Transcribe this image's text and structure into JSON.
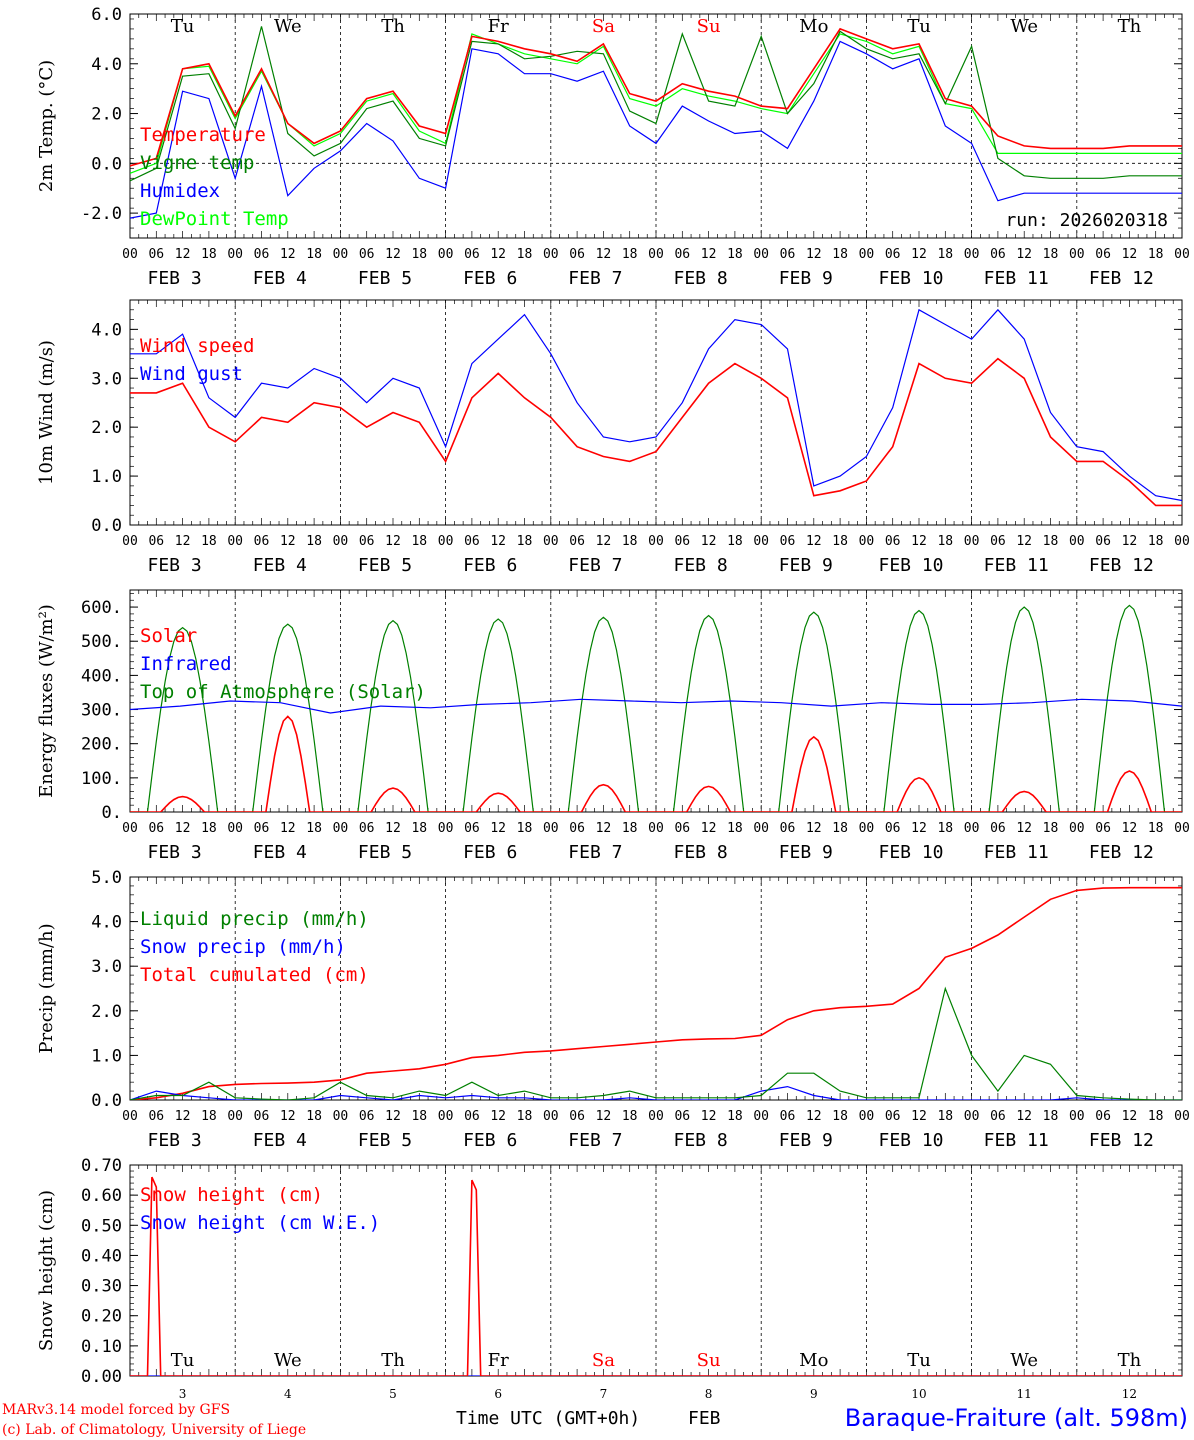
{
  "chart_data": [
    {
      "type": "line",
      "ylabel": "2m Temp. (°C)",
      "ylim": [
        -3,
        6
      ],
      "yticks": [
        "-2.0",
        "0.0",
        "2.0",
        "4.0",
        "6.0"
      ],
      "run_label": "run: 2026020318",
      "x_hours": [
        0,
        6,
        12,
        18,
        24,
        30,
        36,
        42,
        48,
        54,
        60,
        66,
        72,
        78,
        84,
        90,
        96,
        102,
        108,
        114,
        120,
        126,
        132,
        138,
        144,
        150,
        156,
        162,
        168,
        174,
        180,
        186,
        192,
        198,
        204,
        210,
        216,
        222,
        228,
        234,
        240
      ],
      "series": [
        {
          "name": "Temperature",
          "color": "#ff0000",
          "values": [
            -0.1,
            0.2,
            3.8,
            4.0,
            1.9,
            3.8,
            1.6,
            0.8,
            1.3,
            2.6,
            2.9,
            1.5,
            1.2,
            5.1,
            4.9,
            4.6,
            4.4,
            4.1,
            4.8,
            2.8,
            2.5,
            3.2,
            2.9,
            2.7,
            2.3,
            2.2,
            3.8,
            5.4,
            5.0,
            4.6,
            4.8,
            2.6,
            2.3,
            1.1,
            0.7,
            0.6,
            0.6,
            0.6,
            0.7,
            0.7,
            0.7
          ]
        },
        {
          "name": "Vigne temp",
          "color": "#008000",
          "values": [
            -0.7,
            -0.2,
            3.5,
            3.6,
            1.4,
            5.5,
            1.2,
            0.3,
            0.8,
            2.2,
            2.5,
            1.0,
            0.7,
            4.9,
            4.8,
            4.2,
            4.3,
            4.5,
            4.4,
            2.1,
            1.6,
            5.2,
            2.5,
            2.3,
            5.1,
            2.0,
            3.2,
            5.3,
            4.6,
            4.2,
            4.4,
            2.4,
            4.7,
            0.2,
            -0.5,
            -0.6,
            -0.6,
            -0.6,
            -0.5,
            -0.5,
            -0.5
          ]
        },
        {
          "name": "Humidex",
          "color": "#0000ff",
          "values": [
            -2.2,
            -2.0,
            2.9,
            2.6,
            -0.6,
            3.1,
            -1.3,
            -0.2,
            0.5,
            1.6,
            0.9,
            -0.6,
            -1.0,
            4.6,
            4.4,
            3.6,
            3.6,
            3.3,
            3.7,
            1.5,
            0.8,
            2.3,
            1.7,
            1.2,
            1.3,
            0.6,
            2.5,
            4.9,
            4.4,
            3.8,
            4.2,
            1.5,
            0.8,
            -1.5,
            -1.2,
            -1.2,
            -1.2,
            -1.2,
            -1.2,
            -1.2,
            -1.2
          ]
        },
        {
          "name": "DewPoint Temp",
          "color": "#00ff00",
          "values": [
            -0.4,
            0.0,
            3.8,
            3.9,
            1.8,
            3.7,
            1.6,
            0.7,
            1.2,
            2.5,
            2.8,
            1.3,
            0.8,
            5.2,
            4.8,
            4.4,
            4.2,
            4.0,
            4.7,
            2.6,
            2.3,
            3.0,
            2.7,
            2.5,
            2.2,
            2.0,
            3.6,
            5.2,
            4.9,
            4.4,
            4.7,
            2.4,
            2.2,
            0.4,
            0.4,
            0.4,
            0.4,
            0.4,
            0.4,
            0.4,
            0.4
          ]
        }
      ]
    },
    {
      "type": "line",
      "ylabel": "10m Wind (m/s)",
      "ylim": [
        0,
        4.6
      ],
      "yticks": [
        "0.0",
        "1.0",
        "2.0",
        "3.0",
        "4.0"
      ],
      "x_hours": [
        0,
        6,
        12,
        18,
        24,
        30,
        36,
        42,
        48,
        54,
        60,
        66,
        72,
        78,
        84,
        90,
        96,
        102,
        108,
        114,
        120,
        126,
        132,
        138,
        144,
        150,
        156,
        162,
        168,
        174,
        180,
        186,
        192,
        198,
        204,
        210,
        216,
        222,
        228,
        234,
        240
      ],
      "series": [
        {
          "name": "Wind speed",
          "color": "#ff0000",
          "values": [
            2.7,
            2.7,
            2.9,
            2.0,
            1.7,
            2.2,
            2.1,
            2.5,
            2.4,
            2.0,
            2.3,
            2.1,
            1.3,
            2.6,
            3.1,
            2.6,
            2.2,
            1.6,
            1.4,
            1.3,
            1.5,
            2.2,
            2.9,
            3.3,
            3.0,
            2.6,
            0.6,
            0.7,
            0.9,
            1.6,
            3.3,
            3.0,
            2.9,
            3.4,
            3.0,
            1.8,
            1.3,
            1.3,
            0.9,
            0.4,
            0.4
          ]
        },
        {
          "name": "Wind gust",
          "color": "#0000ff",
          "values": [
            3.5,
            3.5,
            3.9,
            2.6,
            2.2,
            2.9,
            2.8,
            3.2,
            3.0,
            2.5,
            3.0,
            2.8,
            1.6,
            3.3,
            3.8,
            4.3,
            3.5,
            2.5,
            1.8,
            1.7,
            1.8,
            2.5,
            3.6,
            4.2,
            4.1,
            3.6,
            0.8,
            1.0,
            1.4,
            2.4,
            4.4,
            4.1,
            3.8,
            4.4,
            3.8,
            2.3,
            1.6,
            1.5,
            1.0,
            0.6,
            0.5
          ]
        }
      ]
    },
    {
      "type": "line",
      "ylabel": "Energy fluxes (W/m²)",
      "ylim": [
        0,
        650
      ],
      "yticks": [
        "0.",
        "100.",
        "200.",
        "300.",
        "400.",
        "500.",
        "600."
      ],
      "day_noon_hours": [
        12,
        36,
        60,
        84,
        108,
        132,
        156,
        180,
        204,
        228
      ],
      "series": [
        {
          "name": "Solar",
          "color": "#ff0000",
          "peaks": [
            45,
            280,
            70,
            55,
            80,
            75,
            220,
            100,
            60,
            120
          ]
        },
        {
          "name": "Infrared",
          "color": "#0000ff",
          "values": [
            300,
            310,
            325,
            320,
            290,
            310,
            305,
            315,
            320,
            330,
            325,
            320,
            325,
            320,
            310,
            320,
            315,
            315,
            320,
            330,
            325,
            310
          ]
        },
        {
          "name": "Top of Atmosphere (Solar)",
          "color": "#008000",
          "peaks": [
            540,
            550,
            560,
            565,
            570,
            575,
            585,
            590,
            600,
            605
          ]
        }
      ]
    },
    {
      "type": "line",
      "ylabel": "Precip (mm/h)",
      "ylim": [
        0,
        5
      ],
      "yticks": [
        "0.0",
        "1.0",
        "2.0",
        "3.0",
        "4.0",
        "5.0"
      ],
      "x_hours": [
        0,
        6,
        12,
        18,
        24,
        30,
        36,
        42,
        48,
        54,
        60,
        66,
        72,
        78,
        84,
        90,
        96,
        102,
        108,
        114,
        120,
        126,
        132,
        138,
        144,
        150,
        156,
        162,
        168,
        174,
        180,
        186,
        192,
        198,
        204,
        210,
        216,
        222,
        228,
        234,
        240
      ],
      "series": [
        {
          "name": "Liquid precip (mm/h)",
          "color": "#008000",
          "values": [
            0,
            0.1,
            0.1,
            0.4,
            0.05,
            0.02,
            0,
            0.05,
            0.4,
            0.1,
            0.05,
            0.2,
            0.1,
            0.4,
            0.1,
            0.2,
            0.05,
            0.05,
            0.1,
            0.2,
            0.05,
            0.05,
            0.05,
            0.05,
            0.1,
            0.6,
            0.6,
            0.2,
            0.05,
            0.05,
            0.05,
            2.5,
            1.0,
            0.2,
            1.0,
            0.8,
            0.1,
            0.05,
            0.02,
            0,
            0
          ]
        },
        {
          "name": "Snow precip (mm/h)",
          "color": "#0000ff",
          "values": [
            0,
            0.2,
            0.1,
            0.05,
            0,
            0,
            0,
            0,
            0.1,
            0.05,
            0,
            0.1,
            0.05,
            0.1,
            0.05,
            0.05,
            0,
            0,
            0,
            0.05,
            0,
            0,
            0,
            0,
            0.2,
            0.3,
            0.1,
            0,
            0,
            0,
            0,
            0,
            0,
            0,
            0,
            0,
            0.05,
            0,
            0,
            0,
            0
          ]
        },
        {
          "name": "Total cumulated (cm)",
          "color": "#ff0000",
          "values": [
            0,
            0.05,
            0.15,
            0.3,
            0.35,
            0.37,
            0.38,
            0.4,
            0.45,
            0.6,
            0.65,
            0.7,
            0.8,
            0.95,
            1.0,
            1.07,
            1.1,
            1.15,
            1.2,
            1.25,
            1.3,
            1.35,
            1.37,
            1.38,
            1.45,
            1.8,
            2.0,
            2.07,
            2.1,
            2.15,
            2.5,
            3.2,
            3.4,
            3.7,
            4.1,
            4.5,
            4.7,
            4.75,
            4.76,
            4.76,
            4.76
          ]
        }
      ]
    },
    {
      "type": "line",
      "ylabel": "Snow height (cm)",
      "ylim": [
        0,
        0.7
      ],
      "yticks": [
        "0.00",
        "0.10",
        "0.20",
        "0.30",
        "0.40",
        "0.50",
        "0.60",
        "0.70"
      ],
      "series": [
        {
          "name": "Snow height (cm)",
          "color": "#ff0000",
          "spikes": [
            {
              "hour": 5,
              "value": 0.66
            },
            {
              "hour": 78,
              "value": 0.65
            }
          ]
        },
        {
          "name": "Snow height (cm W.E.)",
          "color": "#0000ff",
          "spikes": []
        }
      ]
    }
  ],
  "axis": {
    "hour_ticks": [
      "00",
      "06",
      "12",
      "18"
    ],
    "last_hour_tick": "00",
    "day_labels": [
      "FEB  3",
      "FEB  4",
      "FEB  5",
      "FEB  6",
      "FEB  7",
      "FEB  8",
      "FEB  9",
      "FEB 10",
      "FEB 11",
      "FEB 12"
    ],
    "weekdays": [
      {
        "name": "Tu",
        "color": "#000000"
      },
      {
        "name": "We",
        "color": "#000000"
      },
      {
        "name": "Th",
        "color": "#000000"
      },
      {
        "name": "Fr",
        "color": "#000000"
      },
      {
        "name": "Sa",
        "color": "#ff0000"
      },
      {
        "name": "Su",
        "color": "#ff0000"
      },
      {
        "name": "Mo",
        "color": "#000000"
      },
      {
        "name": "Tu",
        "color": "#000000"
      },
      {
        "name": "We",
        "color": "#000000"
      },
      {
        "name": "Th",
        "color": "#000000"
      }
    ],
    "bottom_day_numbers": [
      "3",
      "4",
      "5",
      "6",
      "7",
      "8",
      "9",
      "10",
      "11",
      "12"
    ]
  },
  "footer": {
    "model_line": "MARv3.14 model forced by GFS",
    "copyright_line": "(c) Lab. of Climatology, University of Liege",
    "time_label": "Time UTC (GMT+0h)",
    "month_label": "FEB",
    "station_label": "Baraque-Fraiture (alt. 598m)"
  }
}
